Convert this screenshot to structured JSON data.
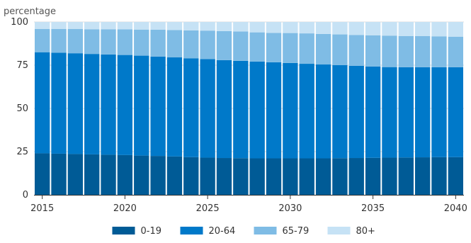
{
  "chart_data": {
    "type": "bar",
    "stacked": true,
    "title": "",
    "ylabel": "percentage",
    "xlabel": "",
    "ylim": [
      0,
      100
    ],
    "yticks": [
      0,
      25,
      50,
      75,
      100
    ],
    "xticks": [
      2015,
      2020,
      2025,
      2030,
      2035,
      2040
    ],
    "x": [
      2015,
      2016,
      2017,
      2018,
      2019,
      2020,
      2021,
      2022,
      2023,
      2024,
      2025,
      2026,
      2027,
      2028,
      2029,
      2030,
      2031,
      2032,
      2033,
      2034,
      2035,
      2036,
      2037,
      2038,
      2039,
      2040
    ],
    "legend_position": "bottom",
    "series": [
      {
        "name": "0-19",
        "color": "#005B96",
        "values": [
          24,
          23.8,
          23.6,
          23.4,
          23.2,
          23,
          22.7,
          22.5,
          22.2,
          21.8,
          21.5,
          21.3,
          21.2,
          21.1,
          21.1,
          21.1,
          21.1,
          21.1,
          21.2,
          21.3,
          21.4,
          21.5,
          21.6,
          21.7,
          21.8,
          21.8
        ]
      },
      {
        "name": "20-64",
        "color": "#0079C9",
        "values": [
          58.5,
          58.4,
          58.3,
          58.1,
          58,
          57.9,
          57.8,
          57.5,
          57.3,
          57.2,
          57,
          56.6,
          56.3,
          56,
          55.6,
          55.2,
          54.7,
          54.3,
          53.8,
          53.3,
          52.8,
          52.4,
          52.2,
          52.1,
          52,
          52
        ]
      },
      {
        "name": "65-79",
        "color": "#7FBCE5",
        "values": [
          13.5,
          13.8,
          14.1,
          14.3,
          14.6,
          14.8,
          15.1,
          15.5,
          15.8,
          16.1,
          16.5,
          16.8,
          17,
          16.9,
          17,
          17.3,
          17.6,
          17.7,
          17.8,
          17.9,
          18.1,
          18.2,
          18.1,
          18,
          17.9,
          17.7
        ]
      },
      {
        "name": "80+",
        "color": "#C6E2F5",
        "values": [
          4,
          4,
          4,
          4.2,
          4.2,
          4.3,
          4.4,
          4.5,
          4.7,
          4.9,
          5,
          5.3,
          5.5,
          6,
          6.3,
          6.4,
          6.6,
          6.9,
          7.2,
          7.5,
          7.7,
          7.9,
          8.1,
          8.2,
          8.3,
          8.5
        ]
      }
    ]
  }
}
